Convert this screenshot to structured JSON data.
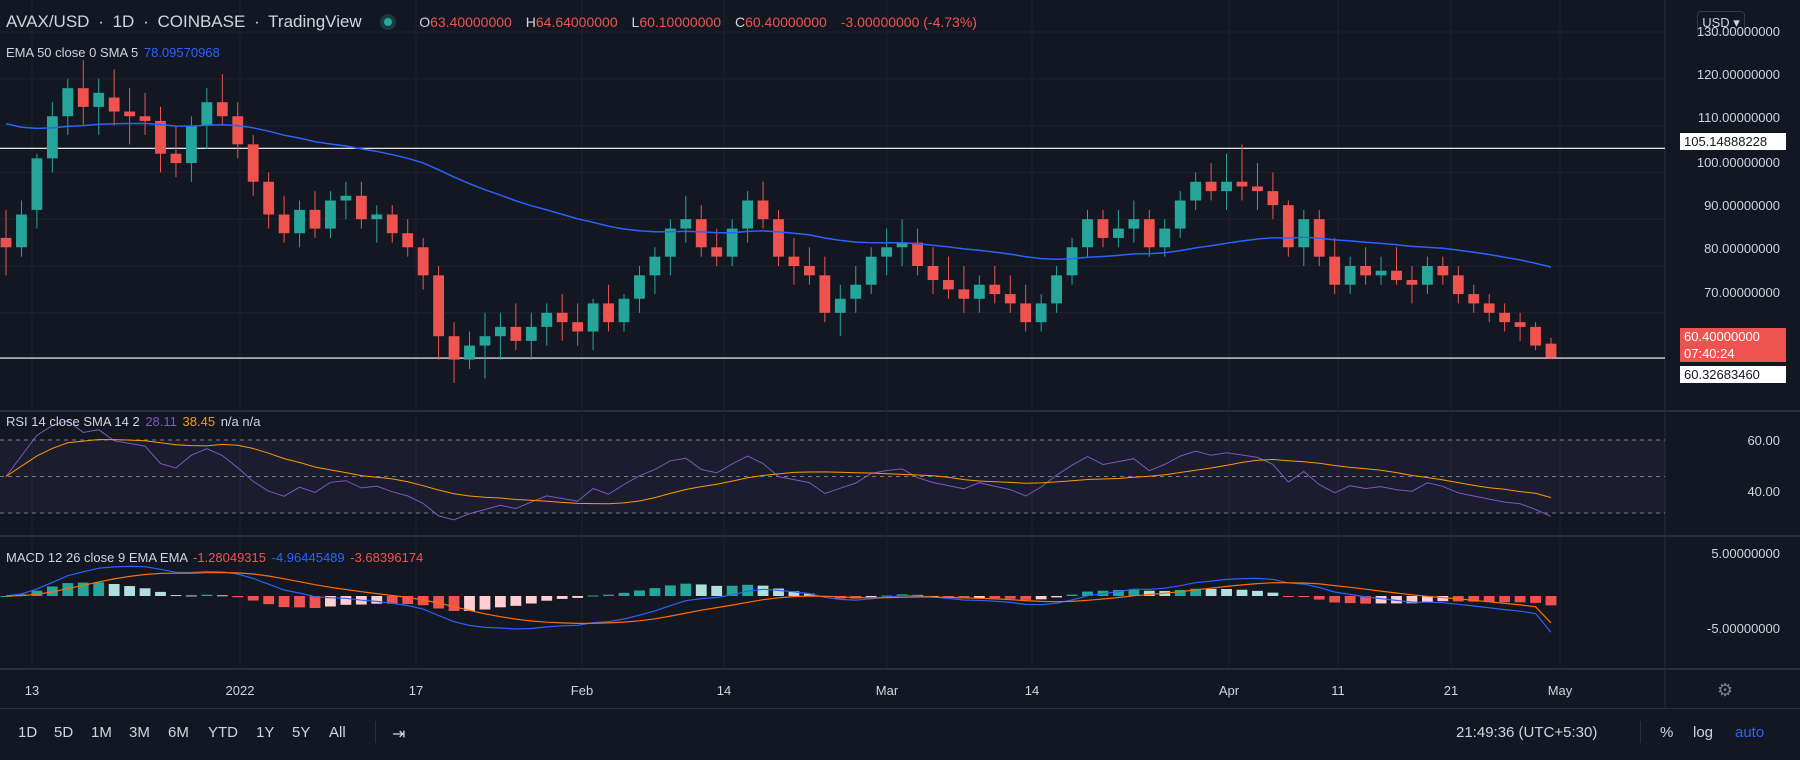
{
  "header": {
    "symbol": "AVAX/USD",
    "interval": "1D",
    "exchange": "COINBASE",
    "brand": "TradingView",
    "open_label": "O",
    "open": "63.40000000",
    "high_label": "H",
    "high": "64.64000000",
    "low_label": "L",
    "low": "60.10000000",
    "close_label": "C",
    "close": "60.40000000",
    "change": "-3.00000000 (-4.73%)"
  },
  "ema_legend": {
    "label": "EMA 50 close 0 SMA 5",
    "value": "78.09570968"
  },
  "rsi_legend": {
    "label": "RSI 14 close SMA 14 2",
    "rsi": "28.11",
    "sma": "38.45",
    "extra": "n/a n/a"
  },
  "macd_legend": {
    "label": "MACD 12 26 close 9 EMA EMA",
    "hist": "-1.28049315",
    "macd": "-4.96445489",
    "signal": "-3.68396174"
  },
  "currency": "USD",
  "price_axis": [
    "130.00000000",
    "120.00000000",
    "110.00000000",
    "100.00000000",
    "90.00000000",
    "80.00000000",
    "70.00000000"
  ],
  "rsi_axis": [
    "60.00",
    "40.00"
  ],
  "macd_axis": [
    "5.00000000",
    "-5.00000000"
  ],
  "tags": {
    "resistance": "105.14888228",
    "last_price": "60.40000000",
    "countdown": "07:40:24",
    "support": "60.32683460"
  },
  "time_axis": [
    "13",
    "2022",
    "17",
    "Feb",
    "14",
    "Mar",
    "14",
    "Apr",
    "11",
    "21",
    "May"
  ],
  "bottom_bar": {
    "ranges": [
      "1D",
      "5D",
      "1M",
      "3M",
      "6M",
      "YTD",
      "1Y",
      "5Y",
      "All"
    ],
    "clock": "21:49:36 (UTC+5:30)",
    "percent": "%",
    "log": "log",
    "auto": "auto"
  },
  "colors": {
    "up": "#26a69a",
    "down": "#ef5350",
    "ema": "#2962ff",
    "rsi": "#7e57c2",
    "rsi_sma": "#ff9800",
    "macd": "#2962ff",
    "signal": "#ff6d00",
    "bg": "#131722"
  },
  "chart_data": {
    "type": "candlestick",
    "symbol": "AVAX/USD",
    "interval": "1D",
    "start_date": "2021-12-13",
    "ohlc": [
      [
        86,
        92,
        78,
        84
      ],
      [
        84,
        94,
        82,
        91
      ],
      [
        92,
        104,
        88,
        103
      ],
      [
        103,
        115,
        100,
        112
      ],
      [
        112,
        120,
        108,
        118
      ],
      [
        118,
        124,
        110,
        114
      ],
      [
        114,
        120,
        108,
        117
      ],
      [
        116,
        122,
        110,
        113
      ],
      [
        113,
        118,
        106,
        112
      ],
      [
        112,
        117,
        108,
        111
      ],
      [
        111,
        114,
        100,
        104
      ],
      [
        104,
        110,
        99,
        102
      ],
      [
        102,
        112,
        98,
        110
      ],
      [
        110,
        118,
        105,
        115
      ],
      [
        115,
        121,
        110,
        112
      ],
      [
        112,
        115,
        103,
        106
      ],
      [
        106,
        108,
        95,
        98
      ],
      [
        98,
        100,
        88,
        91
      ],
      [
        91,
        95,
        85,
        87
      ],
      [
        87,
        94,
        84,
        92
      ],
      [
        92,
        96,
        86,
        88
      ],
      [
        88,
        96,
        86,
        94
      ],
      [
        94,
        98,
        90,
        95
      ],
      [
        95,
        98,
        88,
        90
      ],
      [
        90,
        93,
        85,
        91
      ],
      [
        91,
        93,
        85,
        87
      ],
      [
        87,
        90,
        82,
        84
      ],
      [
        84,
        86,
        75,
        78
      ],
      [
        78,
        80,
        60,
        65
      ],
      [
        65,
        68,
        55,
        60
      ],
      [
        60,
        66,
        58,
        63
      ],
      [
        63,
        70,
        56,
        65
      ],
      [
        65,
        70,
        60,
        67
      ],
      [
        67,
        72,
        62,
        64
      ],
      [
        64,
        70,
        60,
        67
      ],
      [
        67,
        72,
        63,
        70
      ],
      [
        70,
        74,
        64,
        68
      ],
      [
        68,
        72,
        63,
        66
      ],
      [
        66,
        73,
        62,
        72
      ],
      [
        72,
        76,
        66,
        68
      ],
      [
        68,
        74,
        66,
        73
      ],
      [
        73,
        80,
        70,
        78
      ],
      [
        78,
        84,
        74,
        82
      ],
      [
        82,
        90,
        78,
        88
      ],
      [
        88,
        95,
        85,
        90
      ],
      [
        90,
        93,
        82,
        84
      ],
      [
        84,
        88,
        80,
        82
      ],
      [
        82,
        90,
        80,
        88
      ],
      [
        88,
        96,
        85,
        94
      ],
      [
        94,
        98,
        88,
        90
      ],
      [
        90,
        92,
        80,
        82
      ],
      [
        82,
        86,
        76,
        80
      ],
      [
        80,
        84,
        76,
        78
      ],
      [
        78,
        82,
        68,
        70
      ],
      [
        70,
        76,
        65,
        73
      ],
      [
        73,
        80,
        70,
        76
      ],
      [
        76,
        84,
        74,
        82
      ],
      [
        82,
        88,
        78,
        84
      ],
      [
        84,
        90,
        80,
        85
      ],
      [
        85,
        88,
        78,
        80
      ],
      [
        80,
        84,
        74,
        77
      ],
      [
        77,
        82,
        73,
        75
      ],
      [
        75,
        80,
        70,
        73
      ],
      [
        73,
        78,
        70,
        76
      ],
      [
        76,
        80,
        72,
        74
      ],
      [
        74,
        78,
        70,
        72
      ],
      [
        72,
        76,
        66,
        68
      ],
      [
        68,
        74,
        66,
        72
      ],
      [
        72,
        80,
        70,
        78
      ],
      [
        78,
        86,
        76,
        84
      ],
      [
        84,
        92,
        82,
        90
      ],
      [
        90,
        92,
        84,
        86
      ],
      [
        86,
        92,
        84,
        88
      ],
      [
        88,
        94,
        85,
        90
      ],
      [
        90,
        92,
        82,
        84
      ],
      [
        84,
        90,
        82,
        88
      ],
      [
        88,
        96,
        86,
        94
      ],
      [
        94,
        100,
        92,
        98
      ],
      [
        98,
        102,
        94,
        96
      ],
      [
        96,
        104,
        92,
        98
      ],
      [
        98,
        106,
        94,
        97
      ],
      [
        97,
        102,
        92,
        96
      ],
      [
        96,
        100,
        90,
        93
      ],
      [
        93,
        94,
        82,
        84
      ],
      [
        84,
        92,
        80,
        90
      ],
      [
        90,
        92,
        80,
        82
      ],
      [
        82,
        86,
        74,
        76
      ],
      [
        76,
        82,
        74,
        80
      ],
      [
        80,
        84,
        76,
        78
      ],
      [
        78,
        82,
        76,
        79
      ],
      [
        79,
        84,
        76,
        77
      ],
      [
        77,
        80,
        72,
        76
      ],
      [
        76,
        82,
        74,
        80
      ],
      [
        80,
        82,
        76,
        78
      ],
      [
        78,
        80,
        72,
        74
      ],
      [
        74,
        76,
        70,
        72
      ],
      [
        72,
        74,
        68,
        70
      ],
      [
        70,
        72,
        66,
        68
      ],
      [
        68,
        70,
        64,
        67
      ],
      [
        67,
        68,
        62,
        63
      ],
      [
        63.4,
        64.64,
        60.1,
        60.4
      ]
    ],
    "ema50_last": 78.09570968,
    "horizontal_lines": [
      105.14888228,
      60.3268346
    ],
    "ylim": [
      55,
      130
    ],
    "rsi_last": 28.11,
    "rsi_sma_last": 38.45,
    "rsi_levels": [
      70,
      50,
      30
    ],
    "macd_last": -4.96445489,
    "signal_last": -3.68396174,
    "hist_last": -1.28049315
  }
}
